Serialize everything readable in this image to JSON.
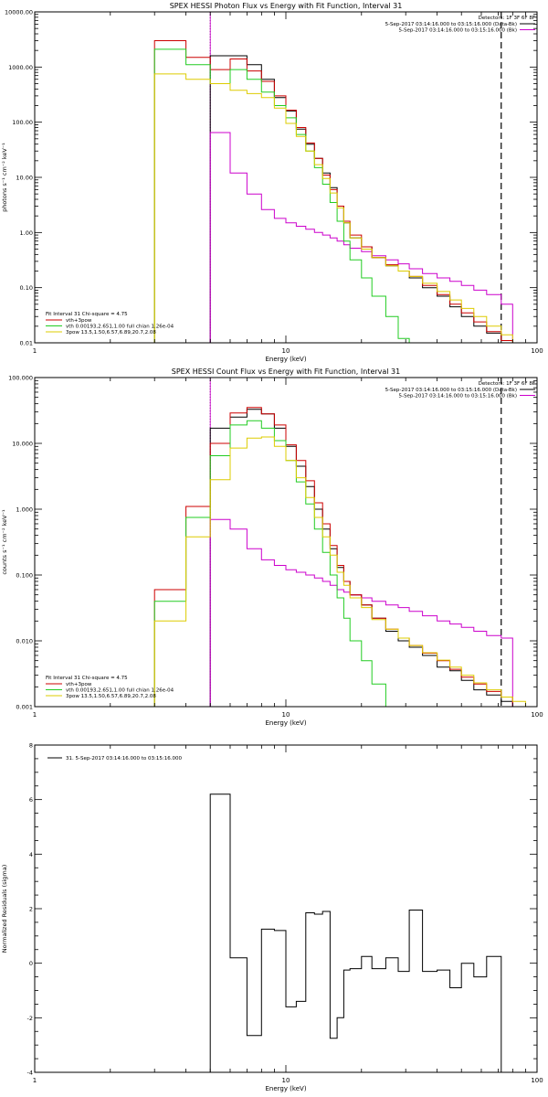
{
  "chart_data": [
    {
      "type": "line",
      "title": "SPEX HESSI Photon Flux vs Energy with Fit Function, Interval 31",
      "xlabel": "Energy (keV)",
      "ylabel": "photons s⁻¹ cm⁻² keV⁻¹",
      "xscale": "log",
      "yscale": "log",
      "xlim": [
        1,
        100
      ],
      "ylim": [
        0.01,
        10000
      ],
      "x_ticks": [
        "1",
        "10",
        "100"
      ],
      "y_ticks": [
        "0.01",
        "0.10",
        "1.00",
        "10.00",
        "100.00",
        "1000.00",
        "10000.00"
      ],
      "vlines": [
        {
          "x": 5,
          "style": "dotted",
          "color": "#000000"
        },
        {
          "x": 5,
          "style": "solid",
          "color": "#cc00cc"
        },
        {
          "x": 72,
          "style": "dashed",
          "color": "#000000"
        }
      ],
      "bin_edges": [
        3,
        4,
        5,
        6,
        7,
        8,
        9,
        10,
        11,
        12,
        13,
        14,
        15,
        16,
        17,
        18,
        20,
        22,
        25,
        28,
        31,
        35,
        40,
        45,
        50,
        56,
        63,
        72,
        80
      ],
      "series": [
        {
          "name": "5-Sep-2017 03:14:16.000 to 03:15:16.000 (Data-Bk)",
          "color": "#000000",
          "values": [
            null,
            null,
            1600,
            1600,
            1100,
            600,
            280,
            160,
            75,
            40,
            22,
            12,
            6.5,
            3.0,
            1.5,
            0.8,
            0.55,
            0.35,
            0.25,
            0.2,
            0.15,
            0.1,
            0.07,
            0.045,
            0.03,
            0.02,
            0.015,
            0.01
          ]
        },
        {
          "name": "5-Sep-2017 03:14:16.000 to 03:15:16.000 (Bk)",
          "color": "#cc00cc",
          "values": [
            null,
            null,
            65,
            12,
            5,
            2.6,
            1.8,
            1.5,
            1.3,
            1.15,
            1.0,
            0.9,
            0.8,
            0.7,
            0.6,
            0.52,
            0.45,
            0.38,
            0.32,
            0.27,
            0.22,
            0.18,
            0.15,
            0.13,
            0.11,
            0.09,
            0.075,
            0.05
          ]
        },
        {
          "name": "vth+3pow",
          "color": "#cc0000",
          "values": [
            3000,
            1500,
            900,
            1400,
            850,
            550,
            300,
            165,
            80,
            42,
            22,
            11,
            6,
            3.0,
            1.6,
            0.9,
            0.55,
            0.35,
            0.26,
            0.2,
            0.16,
            0.11,
            0.075,
            0.05,
            0.035,
            0.024,
            0.016,
            0.011
          ]
        },
        {
          "name": "vth 0.00193,2.651,1.00  full chian 1.26e-04",
          "color": "#22cc22",
          "values": [
            2100,
            1100,
            500,
            900,
            600,
            350,
            200,
            120,
            60,
            30,
            15,
            7.5,
            3.5,
            1.6,
            0.7,
            0.32,
            0.15,
            0.07,
            0.03,
            0.012,
            null,
            null,
            null,
            null,
            null,
            null,
            null,
            null
          ]
        },
        {
          "name": "3pow 13.5,1.50,6.57,6.89,20.7,2.08",
          "color": "#ddcc00",
          "values": [
            750,
            600,
            500,
            380,
            330,
            280,
            180,
            95,
            55,
            30,
            17,
            9.5,
            5.2,
            2.8,
            1.5,
            0.8,
            0.5,
            0.35,
            0.25,
            0.2,
            0.16,
            0.12,
            0.085,
            0.06,
            0.042,
            0.03,
            0.02,
            0.014
          ]
        }
      ],
      "legend_top": {
        "header": "Detectors: 1F 3F 6F 8F",
        "entries": [
          "5-Sep-2017 03:14:16.000 to 03:15:16.000 (Data-Bk)",
          "5-Sep-2017 03:14:16.000 to 03:15:16.000 (Bk)"
        ]
      },
      "legend_bottom": {
        "header": "Fit Interval 31   Chi-square = 4.75",
        "entries": [
          "vth+3pow",
          "vth 0.00193,2.651,1.00  full chian 1.26e-04",
          "3pow 13.5,1.50,6.57,6.89,20.7,2.08"
        ]
      }
    },
    {
      "type": "line",
      "title": "SPEX HESSI Count Flux vs Energy with Fit Function, Interval 31",
      "xlabel": "Energy (keV)",
      "ylabel": "counts s⁻¹ cm⁻² keV⁻¹",
      "xscale": "log",
      "yscale": "log",
      "xlim": [
        1,
        100
      ],
      "ylim": [
        0.001,
        100
      ],
      "x_ticks": [
        "1",
        "10",
        "100"
      ],
      "y_ticks": [
        "0.001",
        "0.010",
        "0.100",
        "1.000",
        "10.000",
        "100.000"
      ],
      "vlines": [
        {
          "x": 5,
          "style": "dotted",
          "color": "#000000"
        },
        {
          "x": 5,
          "style": "solid",
          "color": "#cc00cc"
        },
        {
          "x": 72,
          "style": "dashed",
          "color": "#000000"
        }
      ],
      "bin_edges": [
        3,
        4,
        5,
        6,
        7,
        8,
        9,
        10,
        11,
        12,
        13,
        14,
        15,
        16,
        17,
        18,
        20,
        22,
        25,
        28,
        31,
        35,
        40,
        45,
        50,
        56,
        63,
        72,
        80,
        90
      ],
      "series": [
        {
          "name": "5-Sep-2017 03:14:16.000 to 03:15:16.000 (Data-Bk)",
          "color": "#000000",
          "values": [
            null,
            null,
            17,
            25,
            33,
            28,
            17,
            9,
            4.5,
            2.2,
            1.0,
            0.5,
            0.25,
            0.13,
            0.08,
            0.05,
            0.035,
            0.022,
            0.014,
            0.01,
            0.008,
            0.006,
            0.004,
            0.0035,
            0.0025,
            0.0018,
            0.0015,
            0.0012,
            null
          ]
        },
        {
          "name": "5-Sep-2017 03:14:16.000 to 03:15:16.000 (Bk)",
          "color": "#cc00cc",
          "values": [
            null,
            null,
            0.7,
            0.5,
            0.25,
            0.17,
            0.14,
            0.12,
            0.11,
            0.1,
            0.09,
            0.08,
            0.07,
            0.06,
            0.055,
            0.05,
            0.045,
            0.04,
            0.035,
            0.032,
            0.028,
            0.024,
            0.02,
            0.018,
            0.016,
            0.014,
            0.012,
            0.011,
            null
          ]
        },
        {
          "name": "vth+3pow",
          "color": "#cc0000",
          "values": [
            0.06,
            1.1,
            10,
            29,
            35,
            28,
            19,
            9.5,
            5.5,
            2.7,
            1.25,
            0.6,
            0.28,
            0.14,
            0.08,
            0.05,
            0.035,
            0.022,
            0.015,
            0.011,
            0.0085,
            0.0065,
            0.005,
            0.0037,
            0.0028,
            0.0022,
            0.0017,
            0.0014,
            null
          ]
        },
        {
          "name": "vth 0.00193,2.651,1.00  full chian 1.26e-04",
          "color": "#22cc22",
          "values": [
            0.04,
            0.75,
            6.5,
            19,
            22,
            17,
            11,
            5.5,
            2.6,
            1.2,
            0.5,
            0.22,
            0.1,
            0.045,
            0.022,
            0.01,
            0.005,
            0.0022,
            0.001,
            null,
            null,
            null,
            null,
            null,
            null,
            null,
            null,
            null,
            null
          ]
        },
        {
          "name": "3pow 13.5,1.50,6.57,6.89,20.7,2.08",
          "color": "#ddcc00",
          "values": [
            0.02,
            0.38,
            2.8,
            8.5,
            12,
            12.5,
            9,
            5.5,
            3.0,
            1.5,
            0.75,
            0.38,
            0.2,
            0.11,
            0.07,
            0.045,
            0.032,
            0.021,
            0.015,
            0.011,
            0.0085,
            0.0066,
            0.0051,
            0.004,
            0.003,
            0.0023,
            0.0018,
            0.0014,
            0.0012
          ]
        }
      ],
      "legend_top": {
        "header": "Detectors: 1F 3F 6F 8F",
        "entries": [
          "5-Sep-2017 03:14:16.000 to 03:15:16.000 (Data-Bk)",
          "5-Sep-2017 03:14:16.000 to 03:15:16.000 (Bk)"
        ]
      },
      "legend_bottom": {
        "header": "Fit Interval 31   Chi-square = 4.75",
        "entries": [
          "vth+3pow",
          "vth 0.00193,2.651,1.00  full chian 1.26e-04",
          "3pow 13.5,1.50,6.57,6.89,20.7,2.08"
        ]
      }
    },
    {
      "type": "line",
      "title": "",
      "xlabel": "Energy (keV)",
      "ylabel": "Normalized Residuals (sigma)",
      "xscale": "log",
      "yscale": "linear",
      "xlim": [
        1,
        100
      ],
      "ylim": [
        -4,
        8
      ],
      "x_ticks": [
        "1",
        "10",
        "100"
      ],
      "y_ticks": [
        "-4",
        "-2",
        "0",
        "2",
        "4",
        "6",
        "8"
      ],
      "bin_edges": [
        5,
        6,
        7,
        8,
        9,
        10,
        11,
        12,
        13,
        14,
        15,
        16,
        17,
        18,
        20,
        22,
        25,
        28,
        31,
        35,
        40,
        45,
        50,
        56,
        63,
        72
      ],
      "series": [
        {
          "name": "31. 5-Sep-2017 03:14:16.000 to 03:15:16.000",
          "color": "#000000",
          "values": [
            6.2,
            0.2,
            -2.65,
            1.25,
            1.2,
            -1.6,
            -1.4,
            1.85,
            1.8,
            1.9,
            -2.75,
            -2.0,
            -0.25,
            -0.2,
            0.25,
            -0.2,
            0.2,
            -0.3,
            1.95,
            -0.3,
            -0.25,
            -0.9,
            0.0,
            -0.5,
            0.25
          ]
        }
      ],
      "legend": {
        "entries": [
          "31. 5-Sep-2017 03:14:16.000 to 03:15:16.000"
        ]
      }
    }
  ]
}
